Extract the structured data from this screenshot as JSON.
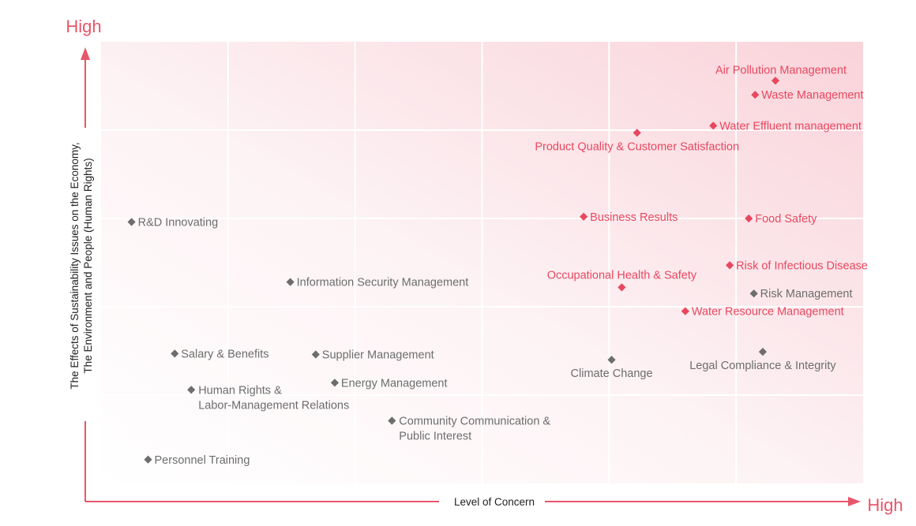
{
  "chart_data": {
    "type": "scatter",
    "title": "",
    "xlabel": "Level of Concern",
    "ylabel_lines": [
      "The Effects of Sustainability Issues on the Economy,",
      "The Environment and People (Human Rights)"
    ],
    "x_high_label": "High",
    "y_high_label": "High",
    "xlim": [
      0,
      6
    ],
    "ylim": [
      0,
      5
    ],
    "grid": true,
    "colors": {
      "material": "#e8475f",
      "other": "#6d6d6d",
      "axis": "#e8566a",
      "grid": "#ffffff"
    },
    "points": [
      {
        "label": "Air Pollution Management",
        "x": 5.31,
        "y": 4.56,
        "group": "material",
        "pos": "above-left"
      },
      {
        "label": "Waste Management",
        "x": 5.15,
        "y": 4.4,
        "group": "material",
        "pos": "right"
      },
      {
        "label": "Water Effluent management",
        "x": 4.82,
        "y": 4.05,
        "group": "material",
        "pos": "right"
      },
      {
        "label": "Product Quality & Customer Satisfaction",
        "x": 4.22,
        "y": 3.97,
        "group": "material",
        "pos": "below-center"
      },
      {
        "label": "Business Results",
        "x": 3.8,
        "y": 3.02,
        "group": "material",
        "pos": "right"
      },
      {
        "label": "Food Safety",
        "x": 5.1,
        "y": 3.0,
        "group": "material",
        "pos": "right"
      },
      {
        "label": "Risk of Infectious Disease",
        "x": 4.95,
        "y": 2.47,
        "group": "material",
        "pos": "right"
      },
      {
        "label": "Occupational Health & Safety",
        "x": 4.1,
        "y": 2.22,
        "group": "material",
        "pos": "above-center"
      },
      {
        "label": "Water Resource Management",
        "x": 4.6,
        "y": 1.95,
        "group": "material",
        "pos": "right"
      },
      {
        "label": "R&D Innovating",
        "x": 0.24,
        "y": 2.96,
        "group": "other",
        "pos": "right"
      },
      {
        "label": "Information Security Management",
        "x": 1.49,
        "y": 2.28,
        "group": "other",
        "pos": "right"
      },
      {
        "label": "Risk Management",
        "x": 5.14,
        "y": 2.15,
        "group": "other",
        "pos": "right"
      },
      {
        "label": "Legal Compliance & Integrity",
        "x": 5.21,
        "y": 1.49,
        "group": "other",
        "pos": "below-center"
      },
      {
        "label": "Climate Change",
        "x": 4.02,
        "y": 1.4,
        "group": "other",
        "pos": "below-center"
      },
      {
        "label": "Salary & Benefits",
        "x": 0.58,
        "y": 1.47,
        "group": "other",
        "pos": "right"
      },
      {
        "label": "Supplier Management",
        "x": 1.69,
        "y": 1.46,
        "group": "other",
        "pos": "right"
      },
      {
        "label": "Energy Management",
        "x": 1.84,
        "y": 1.14,
        "group": "other",
        "pos": "right"
      },
      {
        "label": "Human Rights & Labor-Management Relations",
        "lines": [
          "Human Rights &",
          "Labor-Management Relations"
        ],
        "x": 0.71,
        "y": 1.06,
        "group": "other",
        "pos": "right-multi"
      },
      {
        "label": "Community Communication & Public Interest",
        "lines": [
          "Community Communication &",
          "Public Interest"
        ],
        "x": 2.29,
        "y": 0.71,
        "group": "other",
        "pos": "right-multi"
      },
      {
        "label": "Personnel Training",
        "x": 0.37,
        "y": 0.27,
        "group": "other",
        "pos": "right"
      }
    ]
  }
}
